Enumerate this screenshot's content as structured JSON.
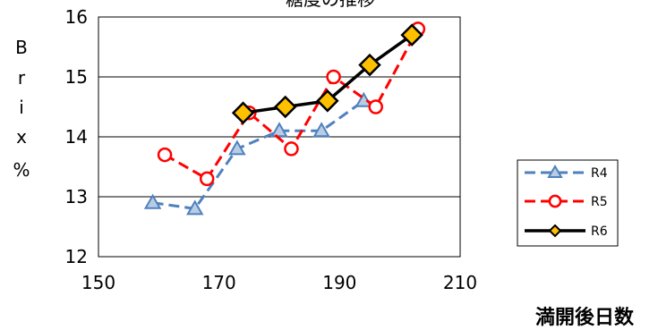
{
  "chart_data": {
    "type": "line",
    "title": "糖度の推移",
    "xlabel": "満開後日数",
    "ylabel": [
      "B",
      "r",
      "i",
      "x",
      "%"
    ],
    "xlim": [
      150,
      210
    ],
    "ylim": [
      12,
      16
    ],
    "xticks": [
      150,
      170,
      190,
      210
    ],
    "yticks": [
      12,
      13,
      14,
      15,
      16
    ],
    "grid": "horizontal",
    "legend_position": "bottom-right",
    "series": [
      {
        "name": "R4",
        "color": "#4f81bd",
        "line_style": "dashed",
        "marker": "triangle",
        "x": [
          159,
          166,
          173,
          180,
          187,
          194
        ],
        "y": [
          12.9,
          12.8,
          13.8,
          14.1,
          14.1,
          14.6
        ]
      },
      {
        "name": "R5",
        "color": "#ff0000",
        "line_style": "dashed",
        "marker": "circle",
        "x": [
          161,
          168,
          175,
          182,
          189,
          196,
          203
        ],
        "y": [
          13.7,
          13.3,
          14.4,
          13.8,
          15.0,
          14.5,
          15.8
        ]
      },
      {
        "name": "R6",
        "color": "#000000",
        "line_style": "solid",
        "marker": "diamond",
        "marker_fill": "#ffc000",
        "x": [
          174,
          181,
          188,
          195,
          202
        ],
        "y": [
          14.4,
          14.5,
          14.6,
          15.2,
          15.7
        ]
      }
    ]
  }
}
